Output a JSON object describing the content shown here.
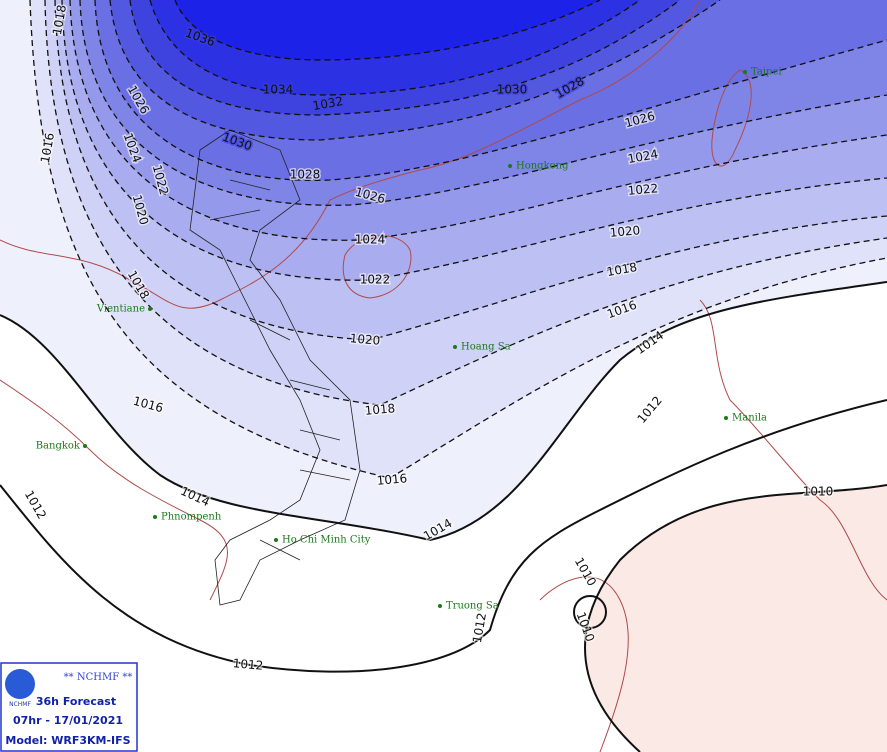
{
  "isobar_labels": [
    "1018",
    "1036",
    "1034",
    "1032",
    "1030",
    "1028",
    "1026",
    "1024",
    "1022",
    "1020",
    "1016",
    "1018",
    "1016",
    "1030",
    "1028",
    "1026",
    "1024",
    "1022",
    "1020",
    "1018",
    "1016",
    "1014",
    "1012",
    "1012",
    "1014",
    "1012",
    "1026",
    "1024",
    "1022",
    "1020",
    "1018",
    "1016",
    "1014",
    "1012",
    "1010",
    "1010",
    "1010"
  ],
  "cities": [
    "Taipei",
    "Hongkong",
    "Vientiane",
    "Hoang Sa",
    "Manila",
    "Bangkok",
    "Phnompenh",
    "Ho Chi Minh City",
    "Truong Sa"
  ],
  "info_box": {
    "agency": "** NCHMF **",
    "logo": "NCHMF",
    "forecast": "36h Forecast",
    "time": "07hr - 17/01/2021",
    "model": "Model: WRF3KM-IFS"
  }
}
